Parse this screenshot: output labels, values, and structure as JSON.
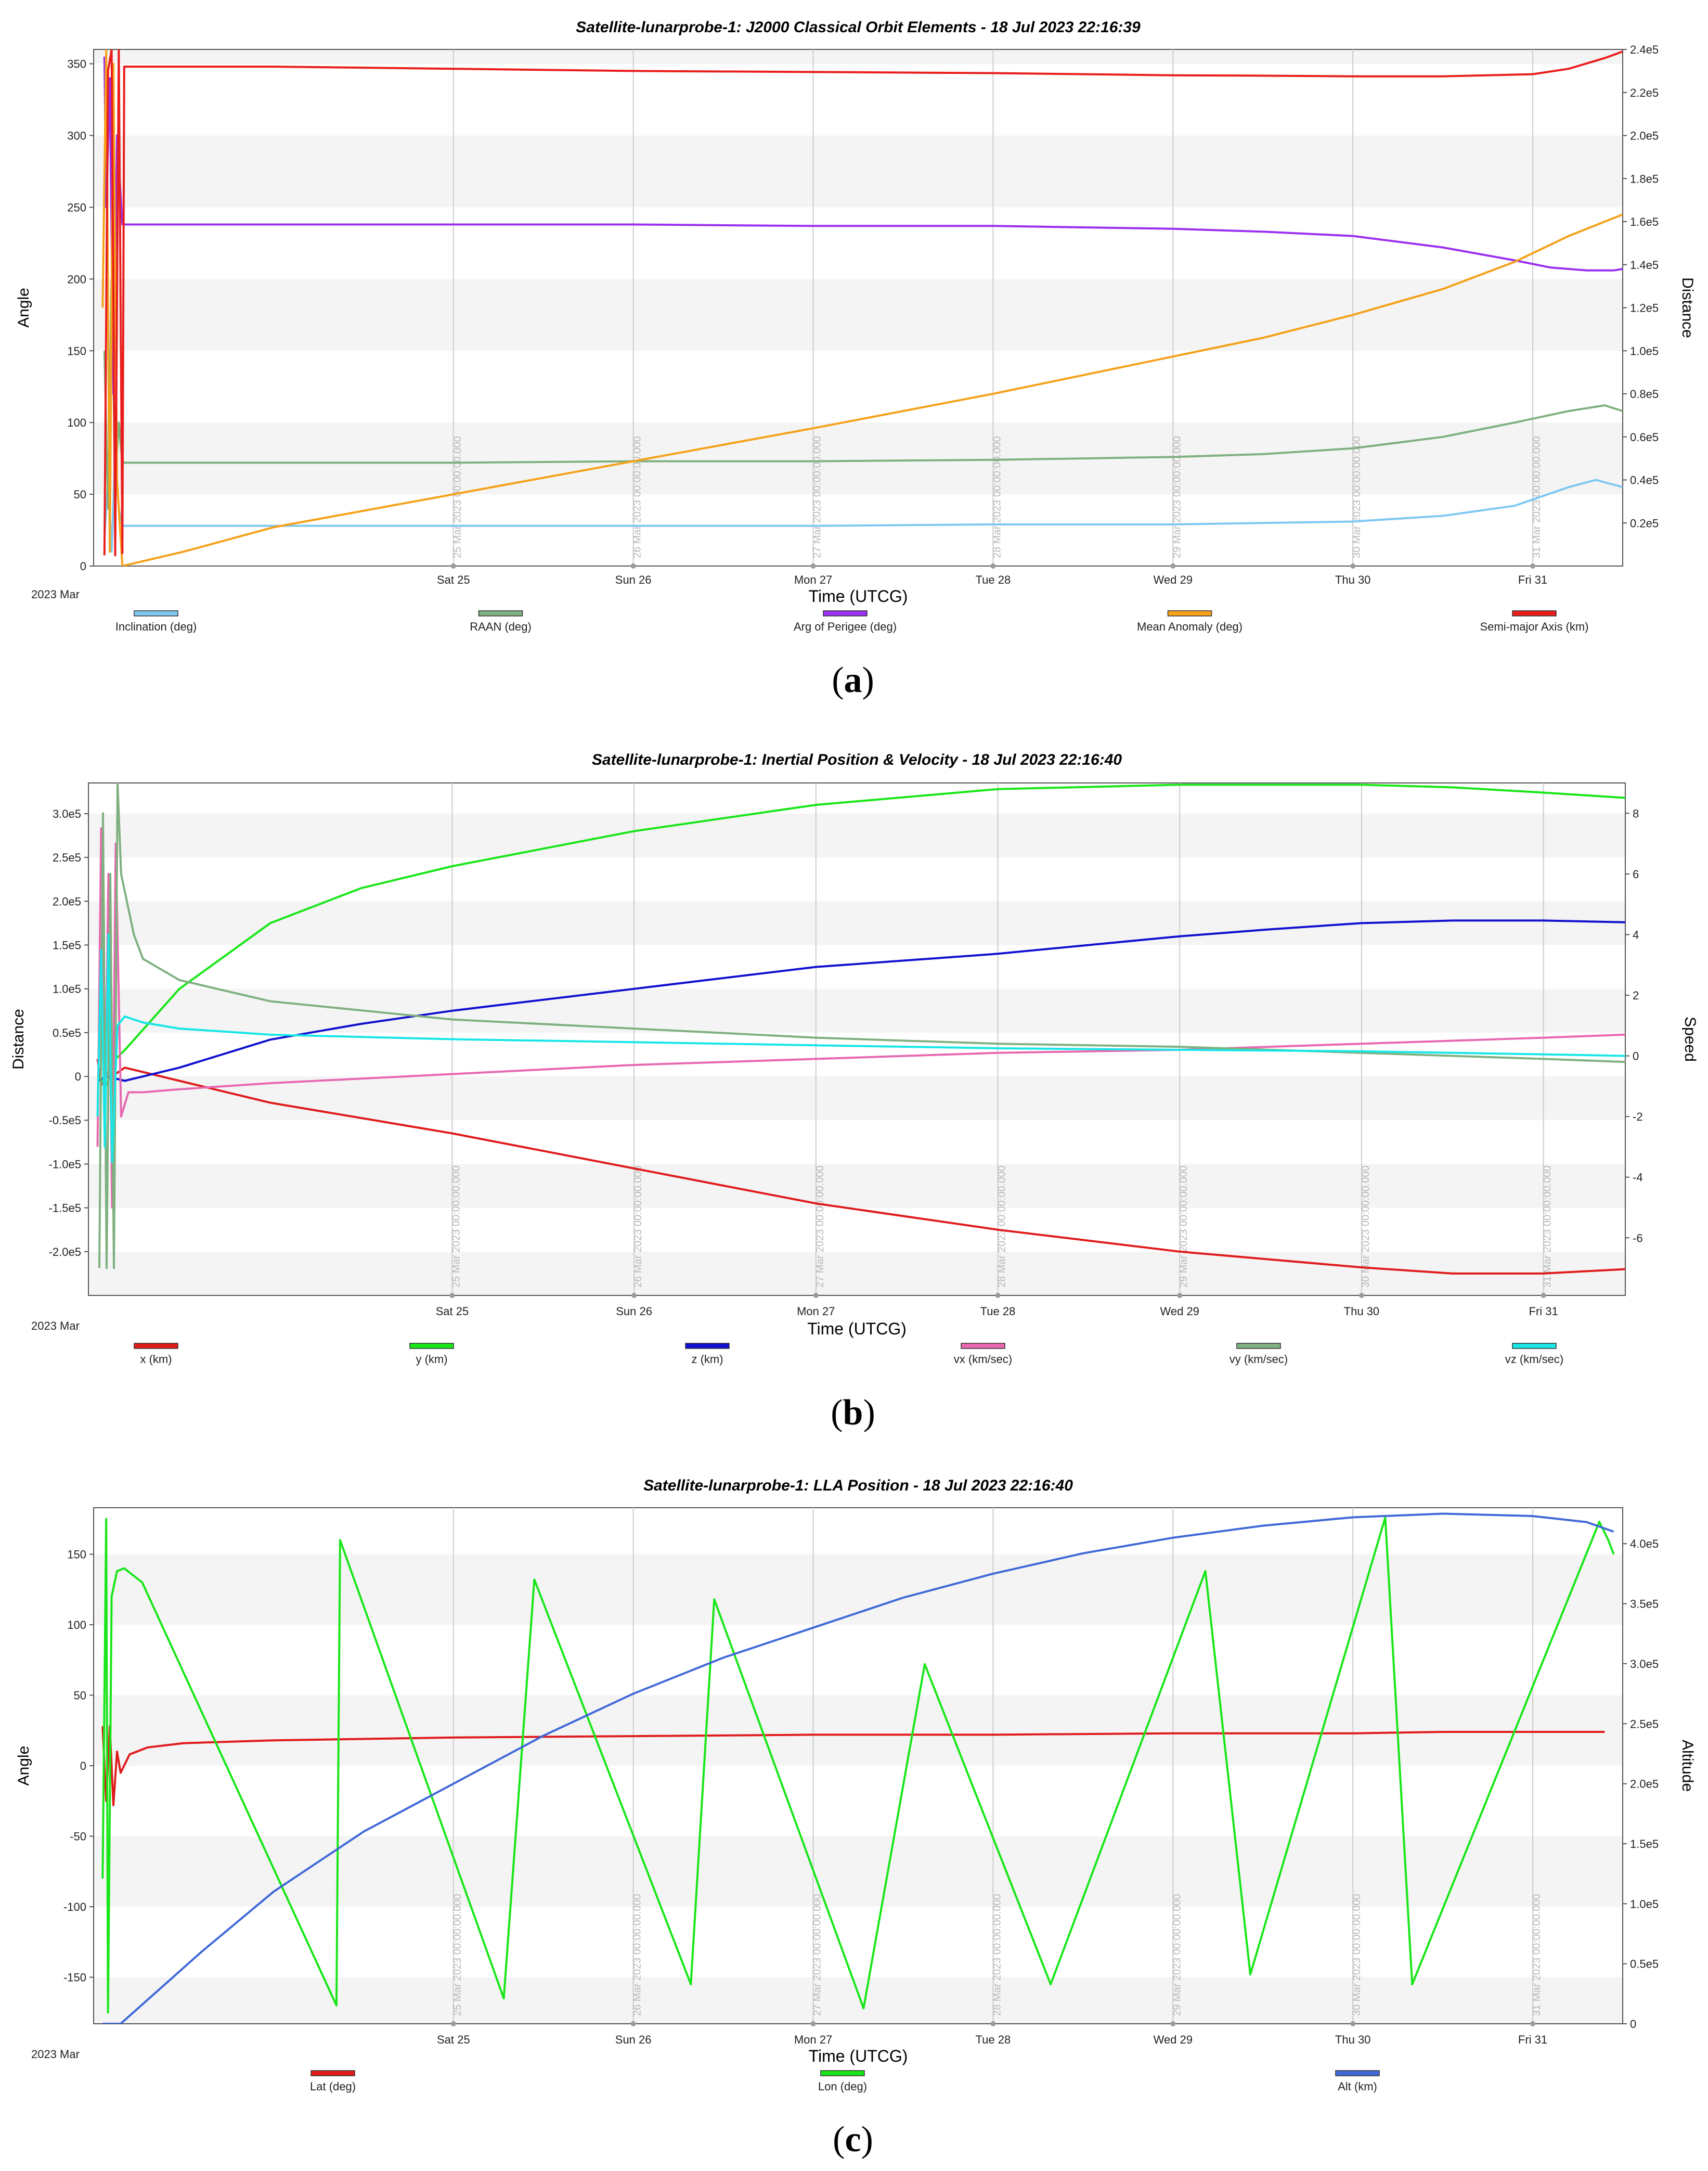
{
  "chart_data": [
    {
      "type": "line",
      "panel": "(a)",
      "caption_open": "(",
      "caption_letter": "a",
      "caption_close": ")",
      "title": "Satellite-lunarprobe-1:  J2000 Classical Orbit Elements - 18 Jul 2023 22:16:39",
      "xlabel": "Time (UTCG)",
      "ylabel_left": "Angle",
      "ylabel_right": "Distance",
      "year_label": "2023 Mar",
      "xlim": [
        23.0,
        31.5
      ],
      "ylim_left": [
        0,
        360
      ],
      "ylim_right": [
        0,
        240000
      ],
      "left_ticks": [
        0,
        50,
        100,
        150,
        200,
        250,
        300,
        350
      ],
      "left_tick_labels": [
        "0",
        "50",
        "100",
        "150",
        "200",
        "250",
        "300",
        "350"
      ],
      "right_ticks": [
        20000,
        40000,
        60000,
        80000,
        100000,
        120000,
        140000,
        160000,
        180000,
        200000,
        220000,
        240000
      ],
      "right_tick_labels": [
        "0.2e5",
        "0.4e5",
        "0.6e5",
        "0.8e5",
        "1.0e5",
        "1.2e5",
        "1.4e5",
        "1.6e5",
        "1.8e5",
        "2.0e5",
        "2.2e5",
        "2.4e5"
      ],
      "x_ticks": [
        25,
        26,
        27,
        28,
        29,
        30,
        31
      ],
      "x_tick_labels": [
        "Sat 25",
        "Sun 26",
        "Mon 27",
        "Tue 28",
        "Wed 29",
        "Thu 30",
        "Fri 31"
      ],
      "grid_stamps": [
        "25 Mar 2023 00:00:00.000",
        "26 Mar 2023 00:00:00.000",
        "27 Mar 2023 00:00:00.000",
        "28 Mar 2023 00:00:00.000",
        "29 Mar 2023 00:00:00.000",
        "30 Mar 2023 00:00:00.000",
        "31 Mar 2023 00:00:00.000"
      ],
      "series": [
        {
          "name": "Inclination (deg)",
          "color": "#7ec8f2",
          "axis": "left",
          "x": [
            23.06,
            23.08,
            23.1,
            23.12,
            23.14,
            23.16,
            24,
            25,
            26,
            27,
            28,
            29,
            29.5,
            30,
            30.5,
            30.9,
            31.2,
            31.35,
            31.5
          ],
          "y": [
            20,
            60,
            10,
            80,
            40,
            28,
            28,
            28,
            28,
            28,
            29,
            29,
            30,
            31,
            35,
            42,
            55,
            60,
            55
          ]
        },
        {
          "name": "RAAN (deg)",
          "color": "#7fb07f",
          "axis": "left",
          "x": [
            23.06,
            23.08,
            23.1,
            23.12,
            23.14,
            23.16,
            24,
            25,
            26,
            27,
            28,
            29,
            29.5,
            30,
            30.5,
            30.9,
            31.2,
            31.4,
            31.5
          ],
          "y": [
            150,
            40,
            200,
            60,
            100,
            72,
            72,
            72,
            73,
            73,
            74,
            76,
            78,
            82,
            90,
            100,
            108,
            112,
            108
          ]
        },
        {
          "name": "Arg of Perigee (deg)",
          "color": "#9b30f0",
          "axis": "left",
          "x": [
            23.06,
            23.07,
            23.09,
            23.11,
            23.13,
            23.16,
            24,
            25,
            26,
            27,
            28,
            29,
            29.5,
            30,
            30.5,
            30.9,
            31.1,
            31.3,
            31.45,
            31.5
          ],
          "y": [
            355,
            250,
            340,
            120,
            300,
            238,
            238,
            238,
            238,
            237,
            237,
            235,
            233,
            230,
            222,
            213,
            208,
            206,
            206,
            207
          ]
        },
        {
          "name": "Mean Anomaly (deg)",
          "color": "#f5a11a",
          "axis": "left",
          "x": [
            23.05,
            23.07,
            23.09,
            23.11,
            23.13,
            23.16,
            23.5,
            24,
            25,
            26,
            27,
            28,
            29,
            29.5,
            30,
            30.5,
            30.9,
            31.2,
            31.5
          ],
          "y": [
            180,
            360,
            10,
            350,
            60,
            0,
            10,
            27,
            50,
            73,
            96,
            120,
            146,
            159,
            175,
            193,
            212,
            230,
            245
          ]
        },
        {
          "name": "Semi-major Axis (km)",
          "color": "#ea1d1d",
          "axis": "right",
          "x": [
            23.06,
            23.08,
            23.1,
            23.12,
            23.14,
            23.16,
            23.17,
            24,
            25,
            26,
            27,
            28,
            29,
            29.5,
            30,
            30.5,
            31,
            31.2,
            31.4,
            31.5
          ],
          "y": [
            5000,
            230000,
            240000,
            5000,
            240000,
            6000,
            232000,
            232000,
            231000,
            230000,
            229500,
            229000,
            228000,
            227800,
            227500,
            227500,
            228500,
            231000,
            236000,
            239000
          ]
        }
      ]
    },
    {
      "type": "line",
      "panel": "(b)",
      "caption_open": "(",
      "caption_letter": "b",
      "caption_close": ")",
      "title": "Satellite-lunarprobe-1:  Inertial Position & Velocity - 18 Jul 2023 22:16:40",
      "xlabel": "Time (UTCG)",
      "ylabel_left": "Distance",
      "ylabel_right": "Speed",
      "year_label": "2023 Mar",
      "xlim": [
        23.0,
        31.45
      ],
      "ylim_left": [
        -250000,
        335000
      ],
      "ylim_right": [
        -7.9,
        9
      ],
      "left_ticks": [
        -200000,
        -150000,
        -100000,
        -50000,
        0,
        50000,
        100000,
        150000,
        200000,
        250000,
        300000
      ],
      "left_tick_labels": [
        "-2.0e5",
        "-1.5e5",
        "-1.0e5",
        "-0.5e5",
        "0",
        "0.5e5",
        "1.0e5",
        "1.5e5",
        "2.0e5",
        "2.5e5",
        "3.0e5"
      ],
      "right_ticks": [
        -6,
        -4,
        -2,
        0,
        2,
        4,
        6,
        8
      ],
      "right_tick_labels": [
        "-6",
        "-4",
        "-2",
        "0",
        "2",
        "4",
        "6",
        "8"
      ],
      "x_ticks": [
        25,
        26,
        27,
        28,
        29,
        30,
        31
      ],
      "x_tick_labels": [
        "Sat 25",
        "Sun 26",
        "Mon 27",
        "Tue 28",
        "Wed 29",
        "Thu 30",
        "Fri 31"
      ],
      "grid_stamps": [
        "25 Mar 2023 00:00:00.000",
        "26 Mar 2023 00:00:00.000",
        "27 Mar 2023 00:00:00.000",
        "28 Mar 2023 00:00:00.000",
        "29 Mar 2023 00:00:00.000",
        "30 Mar 2023 00:00:00.000",
        "31 Mar 2023 00:00:00.000"
      ],
      "series": [
        {
          "name": "x (km)",
          "color": "#e01b1b",
          "axis": "left",
          "x": [
            23.05,
            23.07,
            23.1,
            23.13,
            23.2,
            23.5,
            24,
            25,
            26,
            27,
            28,
            29,
            30,
            30.5,
            31,
            31.45
          ],
          "y": [
            20000,
            -10000,
            5000,
            0,
            10000,
            -5000,
            -30000,
            -65000,
            -105000,
            -145000,
            -175000,
            -200000,
            -218000,
            -225000,
            -225000,
            -220000
          ]
        },
        {
          "name": "y (km)",
          "color": "#19e619",
          "axis": "left",
          "x": [
            23.05,
            23.1,
            23.15,
            23.2,
            23.5,
            24,
            24.5,
            25,
            26,
            27,
            28,
            29,
            29.5,
            30,
            30.5,
            31,
            31.45
          ],
          "y": [
            0,
            -10000,
            20000,
            30000,
            100000,
            175000,
            215000,
            240000,
            280000,
            310000,
            328000,
            333000,
            333000,
            333000,
            330000,
            324000,
            318000
          ]
        },
        {
          "name": "z (km)",
          "color": "#1010d0",
          "axis": "left",
          "x": [
            23.05,
            23.1,
            23.2,
            23.5,
            24,
            24.5,
            25,
            26,
            27,
            28,
            29,
            29.5,
            30,
            30.5,
            31,
            31.45
          ],
          "y": [
            -5000,
            0,
            -5000,
            10000,
            42000,
            60000,
            75000,
            100000,
            125000,
            140000,
            160000,
            168000,
            175000,
            178000,
            178000,
            176000
          ]
        },
        {
          "name": "vx (km/sec)",
          "color": "#e868b0",
          "axis": "right",
          "x": [
            23.05,
            23.07,
            23.09,
            23.11,
            23.13,
            23.15,
            23.18,
            23.22,
            23.3,
            23.5,
            24,
            25,
            26,
            27,
            28,
            29,
            30,
            31,
            31.45
          ],
          "y": [
            -3,
            7.5,
            -3,
            6,
            -5,
            7,
            -2,
            -1.2,
            -1.2,
            -1.1,
            -0.9,
            -0.6,
            -0.3,
            -0.1,
            0.1,
            0.2,
            0.4,
            0.6,
            0.7
          ]
        },
        {
          "name": "vy (km/sec)",
          "color": "#7fb07f",
          "axis": "right",
          "x": [
            23.06,
            23.08,
            23.1,
            23.12,
            23.14,
            23.16,
            23.18,
            23.25,
            23.3,
            23.5,
            24,
            25,
            26,
            27,
            28,
            29,
            30,
            31,
            31.45
          ],
          "y": [
            -7,
            8,
            -7,
            6,
            -7,
            9,
            6,
            4,
            3.2,
            2.5,
            1.8,
            1.2,
            0.9,
            0.6,
            0.4,
            0.3,
            0.1,
            -0.1,
            -0.2
          ]
        },
        {
          "name": "vz (km/sec)",
          "color": "#18e6e6",
          "axis": "right",
          "x": [
            23.05,
            23.07,
            23.09,
            23.11,
            23.13,
            23.16,
            23.2,
            23.3,
            23.5,
            24,
            25,
            26,
            27,
            28,
            29,
            30,
            31,
            31.45
          ],
          "y": [
            -2,
            3.5,
            -3,
            4,
            -3.5,
            1,
            1.3,
            1.1,
            0.9,
            0.7,
            0.55,
            0.45,
            0.35,
            0.25,
            0.2,
            0.15,
            0.05,
            0
          ]
        }
      ]
    },
    {
      "type": "line",
      "panel": "(c)",
      "caption_open": "(",
      "caption_letter": "c",
      "caption_close": ")",
      "title": "Satellite-lunarprobe-1:  LLA Position - 18 Jul 2023 22:16:40",
      "xlabel": "Time (UTCG)",
      "ylabel_left": "Angle",
      "ylabel_right": "Altitude",
      "year_label": "2023 Mar",
      "xlim": [
        23.0,
        31.5
      ],
      "ylim_left": [
        -183,
        183
      ],
      "ylim_right": [
        0,
        430000
      ],
      "left_ticks": [
        -150,
        -100,
        -50,
        0,
        50,
        100,
        150
      ],
      "left_tick_labels": [
        "-150",
        "-100",
        "-50",
        "0",
        "50",
        "100",
        "150"
      ],
      "right_ticks": [
        0,
        50000,
        100000,
        150000,
        200000,
        250000,
        300000,
        350000,
        400000
      ],
      "right_tick_labels": [
        "0",
        "0.5e5",
        "1.0e5",
        "1.5e5",
        "2.0e5",
        "2.5e5",
        "3.0e5",
        "3.5e5",
        "4.0e5"
      ],
      "x_ticks": [
        25,
        26,
        27,
        28,
        29,
        30,
        31
      ],
      "x_tick_labels": [
        "Sat 25",
        "Sun 26",
        "Mon 27",
        "Tue 28",
        "Wed 29",
        "Thu 30",
        "Fri 31"
      ],
      "grid_stamps": [
        "25 Mar 2023 00:00:00.000",
        "26 Mar 2023 00:00:00.000",
        "27 Mar 2023 00:00:00.000",
        "28 Mar 2023 00:00:00.000",
        "29 Mar 2023 00:00:00.000",
        "30 Mar 2023 00:00:00.000",
        "31 Mar 2023 00:00:00.000"
      ],
      "series": [
        {
          "name": "Lat (deg)",
          "color": "#e01b1b",
          "axis": "left",
          "x": [
            23.05,
            23.07,
            23.09,
            23.11,
            23.13,
            23.15,
            23.2,
            23.3,
            23.5,
            24,
            25,
            26,
            27,
            28,
            29,
            30,
            30.5,
            31,
            31.4
          ],
          "y": [
            28,
            -25,
            28,
            -28,
            10,
            -5,
            8,
            13,
            16,
            18,
            20,
            21,
            22,
            22,
            23,
            23,
            24,
            24,
            24
          ]
        },
        {
          "name": "Lon (deg)",
          "color": "#19e619",
          "axis": "left",
          "x": [
            23.05,
            23.07,
            23.08,
            23.1,
            23.13,
            23.17,
            23.27,
            24.35,
            24.37,
            25.28,
            25.45,
            26.32,
            26.45,
            27.28,
            27.62,
            28.32,
            29.18,
            29.43,
            30.18,
            30.33,
            31.37,
            31.42,
            31.45
          ],
          "y": [
            -80,
            175,
            -175,
            120,
            138,
            140,
            130,
            -170,
            160,
            -165,
            132,
            -155,
            118,
            -172,
            72,
            -155,
            138,
            -148,
            176,
            -155,
            173,
            160,
            150
          ]
        },
        {
          "name": "Alt (km)",
          "color": "#4068d8",
          "axis": "right",
          "x": [
            23.05,
            23.15,
            23.3,
            23.6,
            24,
            24.5,
            25,
            25.5,
            26,
            26.5,
            27,
            27.5,
            28,
            28.5,
            29,
            29.5,
            30,
            30.5,
            31,
            31.3,
            31.45
          ],
          "y": [
            0,
            0,
            20000,
            60000,
            110000,
            160000,
            200000,
            240000,
            275000,
            305000,
            330000,
            355000,
            375000,
            392000,
            405000,
            415000,
            422000,
            425000,
            423000,
            418000,
            410000
          ]
        }
      ]
    }
  ]
}
